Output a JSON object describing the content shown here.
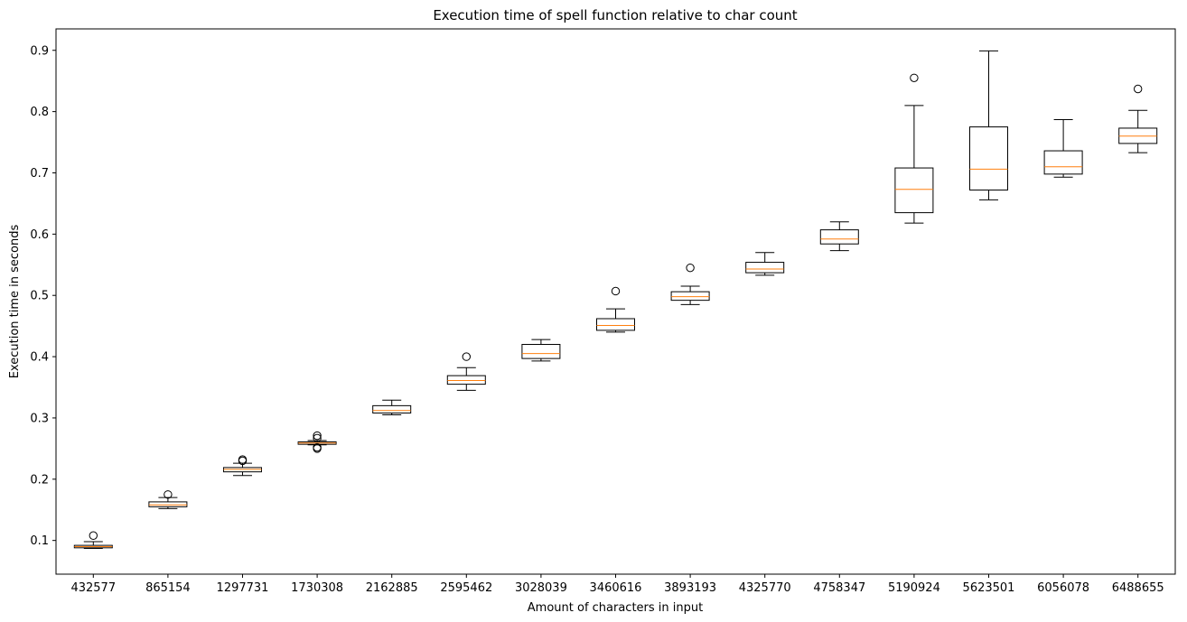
{
  "chart_data": {
    "type": "boxplot",
    "title": "Execution time of spell function relative to char count",
    "xlabel": "Amount of characters in input",
    "ylabel": "Execution time in seconds",
    "ylim": [
      0.045,
      0.935
    ],
    "yticks": [
      0.1,
      0.2,
      0.3,
      0.4,
      0.5,
      0.6,
      0.7,
      0.8,
      0.9
    ],
    "ytick_labels": [
      "0.1",
      "0.2",
      "0.3",
      "0.4",
      "0.5",
      "0.6",
      "0.7",
      "0.8",
      "0.9"
    ],
    "grid": false,
    "colors": {
      "box": "#000000",
      "median": "#ff7f0e"
    },
    "categories": [
      "432577",
      "865154",
      "1297731",
      "1730308",
      "2162885",
      "2595462",
      "3028039",
      "3460616",
      "3893193",
      "4325770",
      "4758347",
      "5190924",
      "5623501",
      "6056078",
      "6488655"
    ],
    "boxes": [
      {
        "whislo": 0.087,
        "q1": 0.088,
        "med": 0.09,
        "q3": 0.092,
        "whishi": 0.098,
        "fliers": [
          0.108
        ]
      },
      {
        "whislo": 0.152,
        "q1": 0.155,
        "med": 0.158,
        "q3": 0.163,
        "whishi": 0.17,
        "fliers": [
          0.175
        ]
      },
      {
        "whislo": 0.206,
        "q1": 0.212,
        "med": 0.216,
        "q3": 0.219,
        "whishi": 0.226,
        "fliers": [
          0.23,
          0.232
        ]
      },
      {
        "whislo": 0.256,
        "q1": 0.257,
        "med": 0.259,
        "q3": 0.261,
        "whishi": 0.263,
        "fliers": [
          0.25,
          0.252,
          0.267,
          0.271
        ]
      },
      {
        "whislo": 0.305,
        "q1": 0.308,
        "med": 0.312,
        "q3": 0.32,
        "whishi": 0.329,
        "fliers": []
      },
      {
        "whislo": 0.345,
        "q1": 0.355,
        "med": 0.361,
        "q3": 0.369,
        "whishi": 0.382,
        "fliers": [
          0.4
        ]
      },
      {
        "whislo": 0.393,
        "q1": 0.397,
        "med": 0.405,
        "q3": 0.42,
        "whishi": 0.428,
        "fliers": []
      },
      {
        "whislo": 0.44,
        "q1": 0.443,
        "med": 0.451,
        "q3": 0.462,
        "whishi": 0.478,
        "fliers": [
          0.507
        ]
      },
      {
        "whislo": 0.485,
        "q1": 0.492,
        "med": 0.498,
        "q3": 0.506,
        "whishi": 0.515,
        "fliers": [
          0.545
        ]
      },
      {
        "whislo": 0.533,
        "q1": 0.537,
        "med": 0.543,
        "q3": 0.554,
        "whishi": 0.57,
        "fliers": []
      },
      {
        "whislo": 0.573,
        "q1": 0.584,
        "med": 0.592,
        "q3": 0.607,
        "whishi": 0.62,
        "fliers": []
      },
      {
        "whislo": 0.618,
        "q1": 0.635,
        "med": 0.673,
        "q3": 0.708,
        "whishi": 0.81,
        "fliers": [
          0.855
        ]
      },
      {
        "whislo": 0.656,
        "q1": 0.672,
        "med": 0.706,
        "q3": 0.775,
        "whishi": 0.899,
        "fliers": []
      },
      {
        "whislo": 0.693,
        "q1": 0.698,
        "med": 0.71,
        "q3": 0.736,
        "whishi": 0.787,
        "fliers": []
      },
      {
        "whislo": 0.733,
        "q1": 0.748,
        "med": 0.76,
        "q3": 0.773,
        "whishi": 0.802,
        "fliers": [
          0.837
        ]
      }
    ]
  }
}
